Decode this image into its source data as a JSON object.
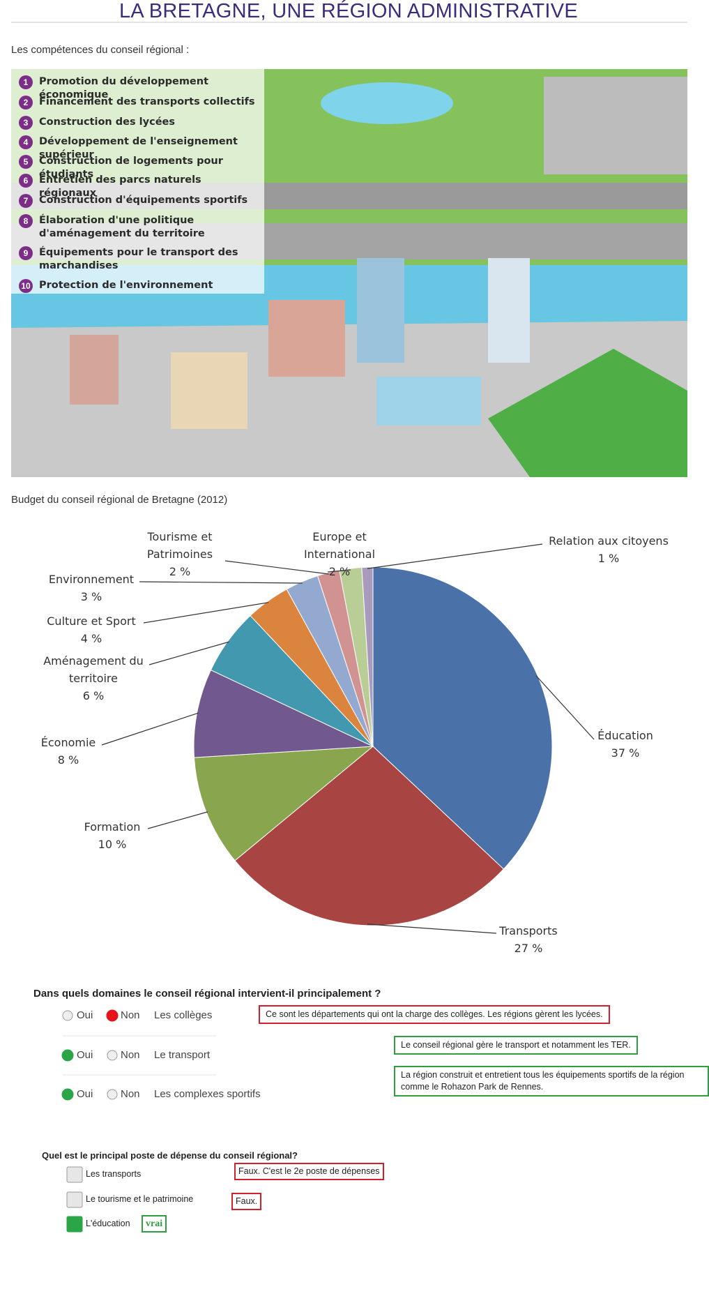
{
  "header": {
    "title": "LA BRETAGNE, UNE RÉGION ADMINISTRATIVE"
  },
  "illustration": {
    "caption": "Les compétences du conseil régional :",
    "items": [
      {
        "number": 1,
        "label": "Promotion du développement économique"
      },
      {
        "number": 2,
        "label": "Financement des transports collectifs"
      },
      {
        "number": 3,
        "label": "Construction des lycées"
      },
      {
        "number": 4,
        "label": "Développement de l'enseignement supérieur"
      },
      {
        "number": 5,
        "label": "Construction de logements pour étudiants"
      },
      {
        "number": 6,
        "label": "Entretien des parcs naturels régionaux"
      },
      {
        "number": 7,
        "label": "Construction d'équipements sportifs"
      },
      {
        "number": 8,
        "label": "Élaboration d'une politique d'aménagement du territoire"
      },
      {
        "number": 9,
        "label": "Équipements pour le transport des marchandises"
      },
      {
        "number": 10,
        "label": "Protection de l'environnement"
      }
    ]
  },
  "chart_data": {
    "type": "pie",
    "title": "Budget du conseil régional de Bretagne (2012)",
    "categories": [
      "Éducation",
      "Transports",
      "Formation",
      "Économie",
      "Aménagement du territoire",
      "Culture et Sport",
      "Environnement",
      "Tourisme et Patrimoines",
      "Europe et International",
      "Relation aux citoyens"
    ],
    "values": [
      37,
      27,
      10,
      8,
      6,
      4,
      3,
      2,
      2,
      1
    ],
    "value_labels": [
      "37 %",
      "27 %",
      "10 %",
      "8 %",
      "6 %",
      "4 %",
      "3 %",
      "2 %",
      "2 %",
      "1 %"
    ],
    "colors": [
      "#4a72a8",
      "#a84442",
      "#89a54e",
      "#71588f",
      "#4198af",
      "#db843d",
      "#93a9cf",
      "#d19392",
      "#b9cd96",
      "#a99bbd"
    ]
  },
  "quiz_domains": {
    "question": "Dans quels domaines le conseil régional intervient-il principalement ?",
    "rows": [
      {
        "options": [
          "Oui",
          "Non"
        ],
        "selected": 1,
        "selected_color": "#e5141b",
        "label": "Les collèges",
        "feedback": "Ce sont les départements qui ont la charge des collèges. Les régions gèrent les lycées.",
        "feedback_color": "#d0202a"
      },
      {
        "options": [
          "Oui",
          "Non"
        ],
        "selected": 0,
        "selected_color": "#2aa648",
        "label": "Le transport",
        "feedback": "Le conseil régional gère le transport et notamment les TER.",
        "feedback_color": "#2e9e3e"
      },
      {
        "options": [
          "Oui",
          "Non"
        ],
        "selected": 0,
        "selected_color": "#2aa648",
        "label": "Les complexes sportifs",
        "feedback": "La région construit et entretient tous les équipements sportifs de la région comme le Rohazon Park de Rennes.",
        "feedback_color": "#2e9e3e"
      }
    ]
  },
  "quiz_budget": {
    "question": "Quel est le principal poste de dépense du conseil régional?",
    "items": [
      {
        "label": "Les transports",
        "checked": false,
        "feedback": "Faux. C'est le 2e poste de dépenses",
        "feedback_color": "#d0202a"
      },
      {
        "label": "Le tourisme et le patrimoine",
        "checked": false,
        "feedback": "Faux.",
        "feedback_color": "#d0202a"
      },
      {
        "label": "L'éducation",
        "checked": true,
        "checked_color": "#2aa648",
        "feedback": "vrai",
        "feedback_color": "#2e9e3e"
      }
    ]
  }
}
